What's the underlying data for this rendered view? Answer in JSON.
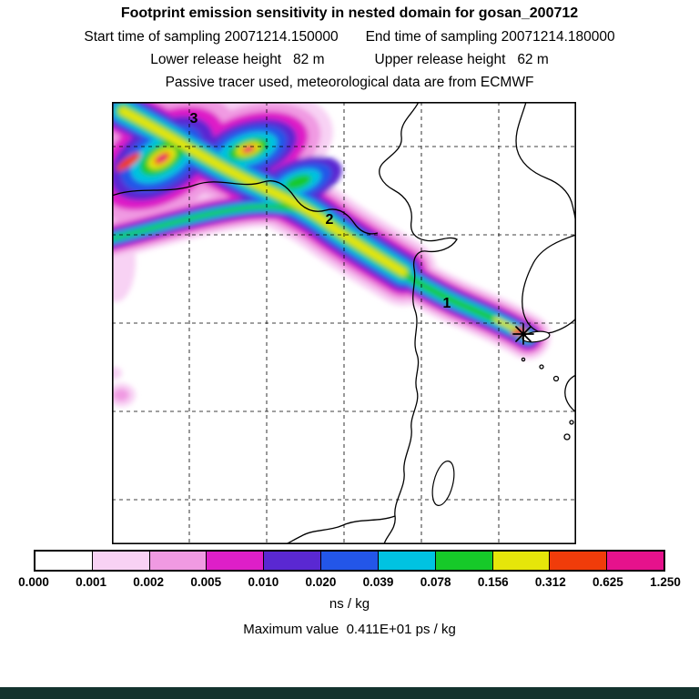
{
  "header": {
    "title": "Footprint emission sensitivity in nested domain for gosan_200712",
    "start_time": "Start time of sampling 20071214.150000",
    "end_time": "End time of sampling 20071214.180000",
    "lower_release": "Lower release height   82 m",
    "upper_release": "Upper release height   62 m",
    "tracer_line": "Passive tracer used, meteorological data are from ECMWF"
  },
  "map": {
    "markers": [
      {
        "label": "1"
      },
      {
        "label": "2"
      },
      {
        "label": "3"
      }
    ]
  },
  "colorbar": {
    "tick_labels": [
      "0.000",
      "0.001",
      "0.002",
      "0.005",
      "0.010",
      "0.020",
      "0.039",
      "0.078",
      "0.156",
      "0.312",
      "0.625",
      "1.250"
    ],
    "colors": [
      "#ffffff",
      "#f8d2f4",
      "#f09ae2",
      "#de1fc8",
      "#5a28d2",
      "#2356e8",
      "#00c3e1",
      "#16c929",
      "#e6e60a",
      "#f03c0a",
      "#e6128c"
    ],
    "units": "ns / kg"
  },
  "footer": {
    "max_value": "Maximum value  0.411E+01 ps / kg"
  },
  "chart_data": {
    "type": "heatmap",
    "title": "Footprint emission sensitivity in nested domain for gosan_200712",
    "station": "gosan_200712",
    "start_time_of_sampling": "20071214.150000",
    "end_time_of_sampling": "20071214.180000",
    "lower_release_height_m": 82,
    "upper_release_height_m": 62,
    "tracer_note": "Passive tracer used, meteorological data are from ECMWF",
    "units": "ns / kg",
    "maximum_value_text": "0.411E+01 ps / kg",
    "maximum_value_numeric": 4.11,
    "maximum_value_units": "ps / kg",
    "colorbar_boundaries": [
      0.0,
      0.001,
      0.002,
      0.005,
      0.01,
      0.02,
      0.039,
      0.078,
      0.156,
      0.312,
      0.625,
      1.25
    ],
    "colorbar_colors": [
      "#ffffff",
      "#f8d2f4",
      "#f09ae2",
      "#de1fc8",
      "#5a28d2",
      "#2356e8",
      "#00c3e1",
      "#16c929",
      "#e6e60a",
      "#f03c0a",
      "#e6128c"
    ],
    "colorbar_orientation": "horizontal",
    "grid": "dashed",
    "plume_markers": [
      "1",
      "2",
      "3"
    ],
    "release_location_marker": "asterisk near Jeju (Gosan), plume extends to northwest"
  }
}
